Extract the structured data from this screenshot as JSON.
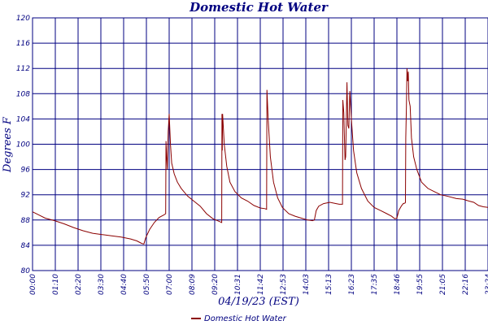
{
  "chart_data": {
    "type": "line",
    "title": "Domestic Hot Water",
    "xlabel": "04/19/23 (EST)",
    "ylabel": "Degrees F",
    "ylim": [
      80,
      120
    ],
    "yticks": [
      80,
      84,
      88,
      92,
      96,
      100,
      104,
      108,
      112,
      116,
      120
    ],
    "xlim": [
      0,
      1440
    ],
    "xtick_labels": [
      "00:00",
      "01:10",
      "02:20",
      "03:30",
      "04:40",
      "05:50",
      "07:00",
      "08:09",
      "09:20",
      "10:31",
      "11:42",
      "12:53",
      "14:03",
      "15:13",
      "16:23",
      "17:35",
      "18:46",
      "19:55",
      "21:05",
      "22:16",
      "23:24"
    ],
    "grid": true,
    "legend": "bottom-center",
    "series": [
      {
        "name": "Domestic Hot Water",
        "color": "#8b0000",
        "points": [
          [
            0,
            89.3
          ],
          [
            20,
            88.8
          ],
          [
            40,
            88.3
          ],
          [
            70,
            87.9
          ],
          [
            100,
            87.4
          ],
          [
            130,
            86.8
          ],
          [
            160,
            86.3
          ],
          [
            190,
            85.9
          ],
          [
            220,
            85.7
          ],
          [
            250,
            85.5
          ],
          [
            280,
            85.3
          ],
          [
            310,
            85.0
          ],
          [
            330,
            84.7
          ],
          [
            345,
            84.3
          ],
          [
            352,
            84.2
          ],
          [
            358,
            85.2
          ],
          [
            370,
            86.5
          ],
          [
            385,
            87.6
          ],
          [
            400,
            88.4
          ],
          [
            415,
            88.8
          ],
          [
            421,
            89.0
          ],
          [
            422,
            100.5
          ],
          [
            424,
            98.0
          ],
          [
            426,
            96.0
          ],
          [
            429,
            102.0
          ],
          [
            432,
            104.8
          ],
          [
            436,
            100.0
          ],
          [
            440,
            97.0
          ],
          [
            448,
            95.3
          ],
          [
            458,
            94.0
          ],
          [
            470,
            93.0
          ],
          [
            490,
            91.8
          ],
          [
            510,
            91.0
          ],
          [
            530,
            90.2
          ],
          [
            550,
            89.0
          ],
          [
            570,
            88.2
          ],
          [
            590,
            87.8
          ],
          [
            598,
            87.6
          ],
          [
            599,
            104.8
          ],
          [
            600,
            99.0
          ],
          [
            601,
            104.8
          ],
          [
            606,
            100.0
          ],
          [
            614,
            96.5
          ],
          [
            624,
            94.0
          ],
          [
            640,
            92.5
          ],
          [
            660,
            91.5
          ],
          [
            680,
            91.0
          ],
          [
            700,
            90.3
          ],
          [
            720,
            89.9
          ],
          [
            735,
            89.8
          ],
          [
            740,
            89.7
          ],
          [
            741,
            108.6
          ],
          [
            745,
            104.0
          ],
          [
            752,
            98.0
          ],
          [
            762,
            94.0
          ],
          [
            775,
            91.5
          ],
          [
            790,
            90.0
          ],
          [
            810,
            89.0
          ],
          [
            830,
            88.6
          ],
          [
            850,
            88.3
          ],
          [
            870,
            88.0
          ],
          [
            885,
            87.9
          ],
          [
            891,
            88.0
          ],
          [
            897,
            89.5
          ],
          [
            905,
            90.2
          ],
          [
            920,
            90.6
          ],
          [
            940,
            90.8
          ],
          [
            960,
            90.6
          ],
          [
            970,
            90.5
          ],
          [
            980,
            90.5
          ],
          [
            981,
            107.0
          ],
          [
            984,
            105.0
          ],
          [
            988,
            97.5
          ],
          [
            990,
            98.0
          ],
          [
            994,
            109.8
          ],
          [
            997,
            103.0
          ],
          [
            1000,
            102.5
          ],
          [
            1003,
            108.4
          ],
          [
            1008,
            104.0
          ],
          [
            1015,
            99.0
          ],
          [
            1025,
            95.5
          ],
          [
            1040,
            93.0
          ],
          [
            1060,
            91.0
          ],
          [
            1080,
            90.0
          ],
          [
            1100,
            89.5
          ],
          [
            1120,
            89.0
          ],
          [
            1135,
            88.6
          ],
          [
            1145,
            88.2
          ],
          [
            1152,
            88.3
          ],
          [
            1158,
            89.5
          ],
          [
            1166,
            90.2
          ],
          [
            1172,
            90.6
          ],
          [
            1178,
            90.7
          ],
          [
            1179,
            90.8
          ],
          [
            1180,
            101.0
          ],
          [
            1182,
            106.0
          ],
          [
            1184,
            112.0
          ],
          [
            1186,
            110.0
          ],
          [
            1188,
            111.5
          ],
          [
            1190,
            107.0
          ],
          [
            1194,
            106.0
          ],
          [
            1198,
            101.0
          ],
          [
            1205,
            98.0
          ],
          [
            1215,
            96.0
          ],
          [
            1230,
            94.0
          ],
          [
            1250,
            93.0
          ],
          [
            1270,
            92.5
          ],
          [
            1290,
            92.0
          ],
          [
            1310,
            91.8
          ],
          [
            1340,
            91.4
          ],
          [
            1360,
            91.3
          ],
          [
            1380,
            91.0
          ],
          [
            1395,
            90.8
          ],
          [
            1410,
            90.3
          ],
          [
            1425,
            90.1
          ],
          [
            1440,
            90.0
          ]
        ]
      }
    ]
  }
}
